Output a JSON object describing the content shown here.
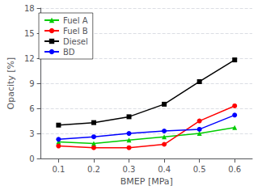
{
  "chart_data": {
    "type": "line",
    "xlabel": "BMEP [MPa]",
    "ylabel": "Opacity [%]",
    "x": [
      0.1,
      0.2,
      0.3,
      0.4,
      0.5,
      0.6
    ],
    "series": [
      {
        "name": "Fuel A",
        "color": "#00cc00",
        "marker": "triangle",
        "values": [
          2.0,
          1.8,
          2.2,
          2.6,
          3.0,
          3.7
        ]
      },
      {
        "name": "Fuel B",
        "color": "#ff0000",
        "marker": "circle",
        "values": [
          1.5,
          1.3,
          1.3,
          1.7,
          4.5,
          6.3
        ]
      },
      {
        "name": "Diesel",
        "color": "#000000",
        "marker": "square",
        "values": [
          4.0,
          4.3,
          5.0,
          6.5,
          9.2,
          11.8
        ]
      },
      {
        "name": "BD",
        "color": "#0000ff",
        "marker": "circle",
        "values": [
          2.3,
          2.6,
          3.0,
          3.3,
          3.5,
          5.2
        ]
      }
    ],
    "xlim": [
      0.05,
      0.65
    ],
    "xticks": [
      0.1,
      0.2,
      0.3,
      0.4,
      0.5,
      0.6
    ],
    "ylim": [
      0,
      18
    ],
    "yticks": [
      0,
      3,
      6,
      9,
      12,
      15,
      18
    ],
    "grid": true,
    "legend": "upper left"
  }
}
